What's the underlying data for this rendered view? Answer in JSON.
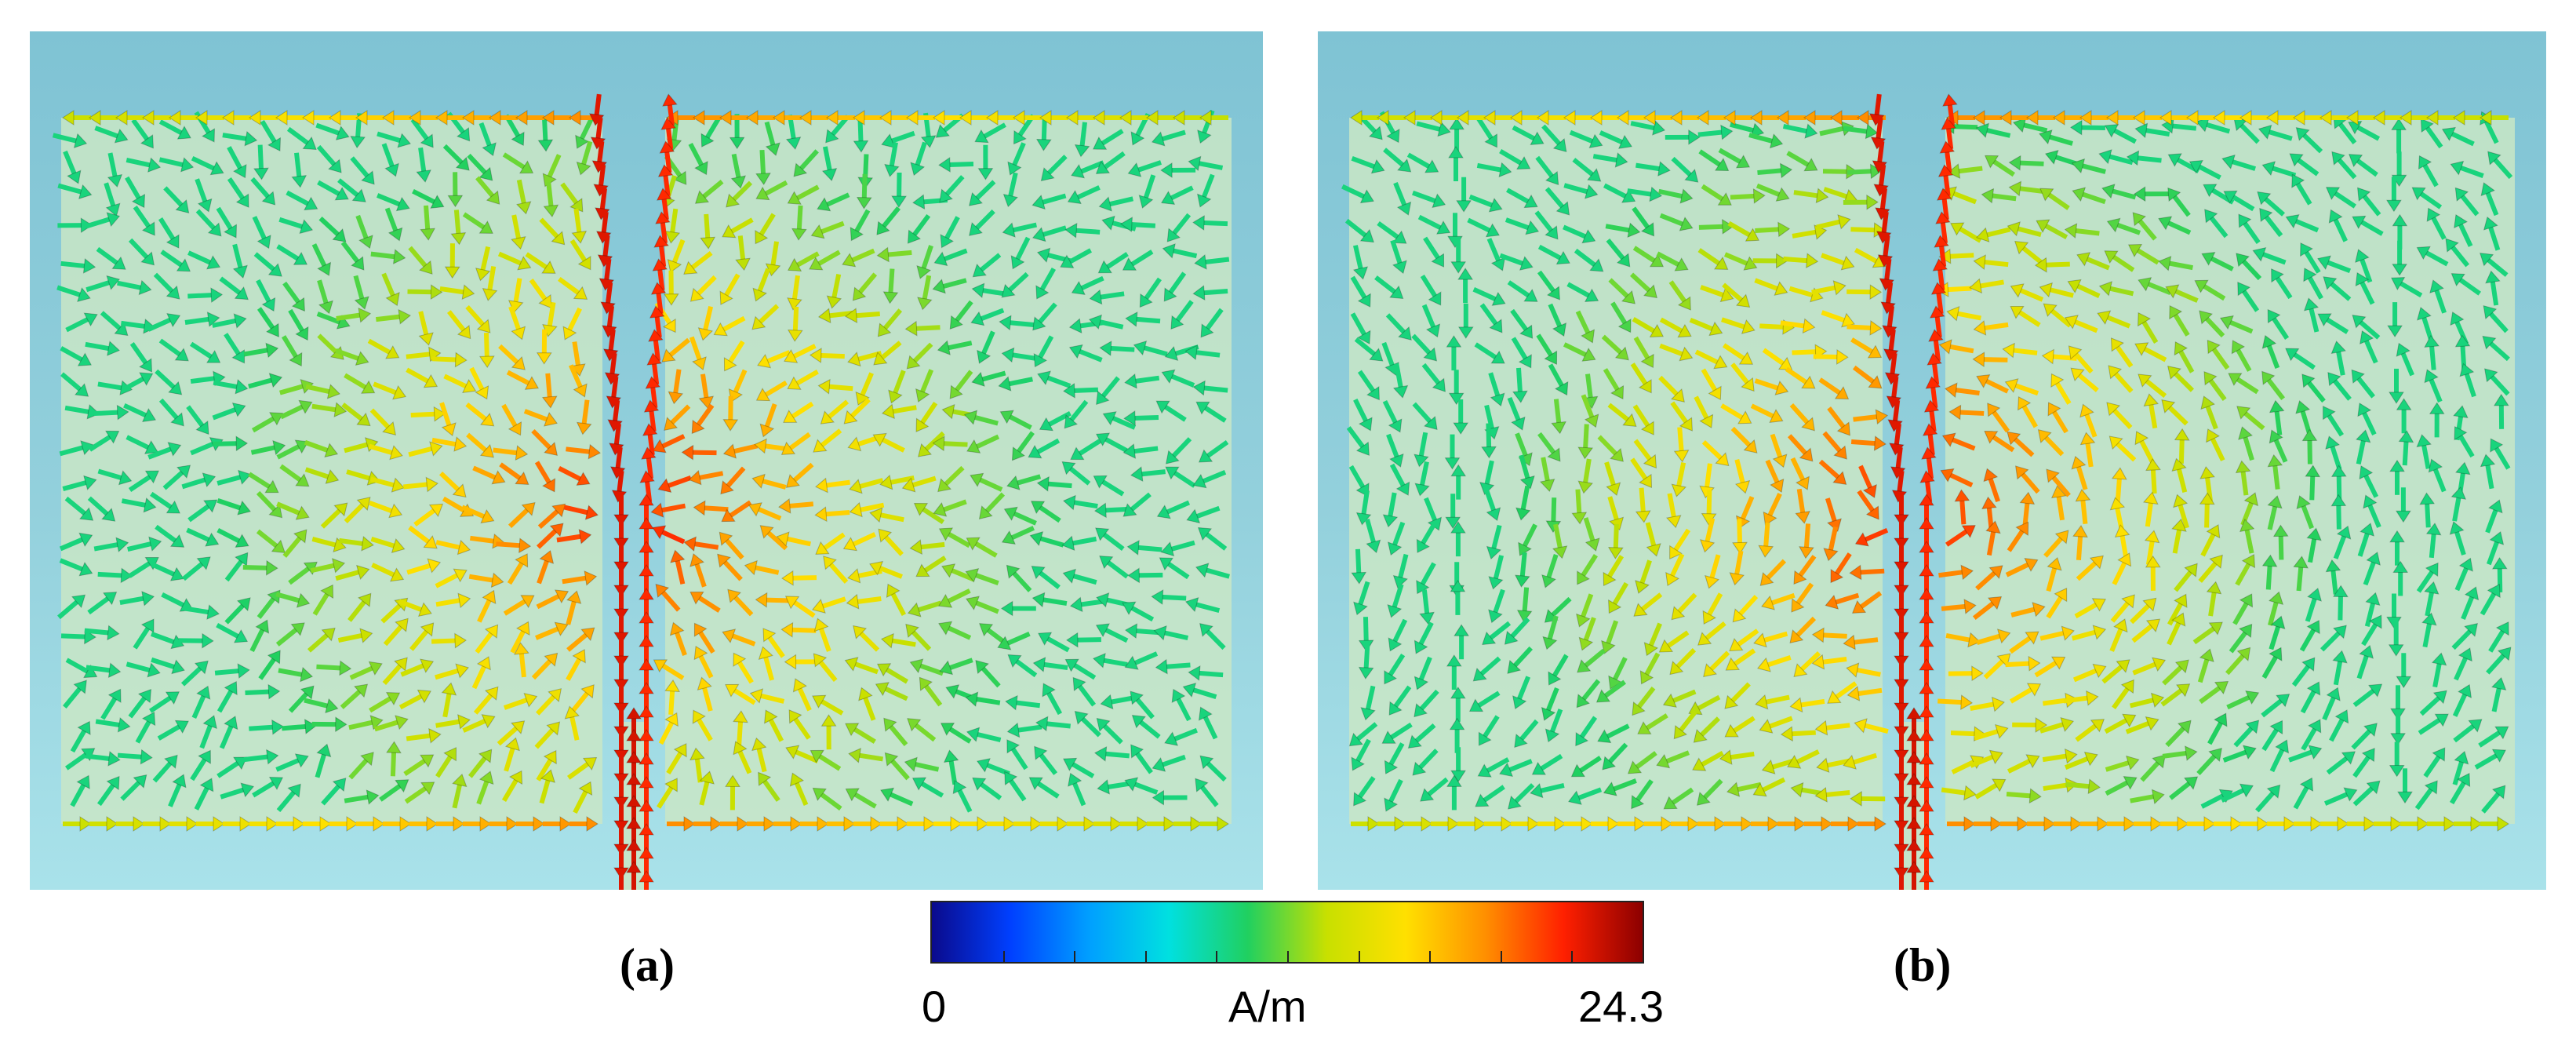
{
  "panels": [
    {
      "id": "a",
      "label": "(a)"
    },
    {
      "id": "b",
      "label": "(b)"
    }
  ],
  "colorbar": {
    "min_label": "0",
    "unit_label": "A/m",
    "max_label": "24.3",
    "min_value": 0,
    "max_value": 24.3,
    "colormap": [
      "#0a0a8c",
      "#0040ff",
      "#00a0ff",
      "#00e0e0",
      "#20d060",
      "#c8e000",
      "#ffe000",
      "#ff9000",
      "#ff2000",
      "#8c0000"
    ]
  },
  "colors": {
    "background_top": "#7fc3d4",
    "background_bottom": "#a9e2ea",
    "patch_fill": "#c9e6c6"
  }
}
